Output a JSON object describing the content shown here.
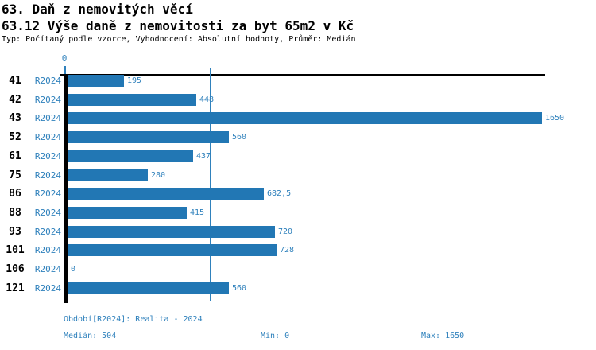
{
  "header": {
    "title": "63. Daň z nemovitých věcí",
    "subtitle": "63.12 Výše daně z nemovitosti za byt 65m2 v Kč",
    "meta": "Typ: Počítaný podle vzorce, Vyhodnocení: Absolutní hodnoty, Průměr: Medián"
  },
  "chart_data": {
    "type": "bar",
    "orientation": "horizontal",
    "categories": [
      "41",
      "42",
      "43",
      "52",
      "61",
      "75",
      "86",
      "88",
      "93",
      "101",
      "106",
      "121"
    ],
    "series": [
      {
        "name": "R2024",
        "values": [
          195,
          448,
          1650,
          560,
          437,
          280,
          682.5,
          415,
          720,
          728,
          0,
          560
        ],
        "value_labels": [
          "195",
          "448",
          "1650",
          "560",
          "437",
          "280",
          "682,5",
          "415",
          "720",
          "728",
          "0",
          "560"
        ]
      }
    ],
    "xlim": [
      0,
      1650
    ],
    "x_axis": {
      "zero_label": "0"
    },
    "median_value": 504,
    "legend_position": "none",
    "grid": "median-only",
    "bar_color": "#2277b4",
    "label_color": "#2f81bc"
  },
  "footer": {
    "period": "Období[R2024]: Realita - 2024",
    "median": "Medián: 504",
    "min": "Min: 0",
    "max": "Max: 1650"
  }
}
